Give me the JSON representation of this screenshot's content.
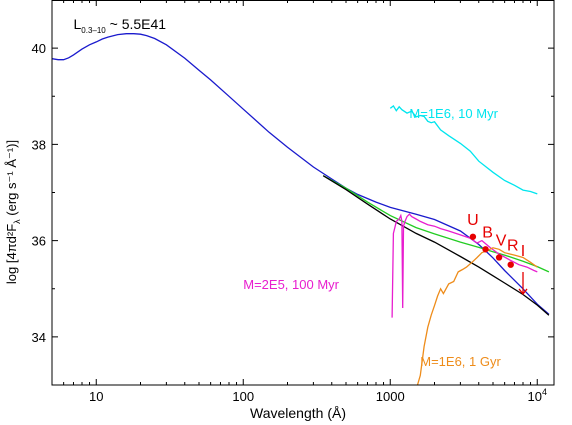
{
  "chart_data": {
    "type": "line",
    "title": "",
    "xlabel": "Wavelength (Å)",
    "ylabel": "log [4πd²F",
    "ylabel_sub": "λ",
    "ylabel_units": " (erg s⁻¹ Å⁻¹)]",
    "x_scale": "log",
    "xlim": [
      5,
      13000
    ],
    "ylim": [
      33,
      41
    ],
    "x_ticks": [
      {
        "value": 10,
        "label": "10",
        "sup": ""
      },
      {
        "value": 100,
        "label": "100",
        "sup": ""
      },
      {
        "value": 1000,
        "label": "1000",
        "sup": ""
      },
      {
        "value": 10000,
        "label": "10",
        "sup": "4"
      }
    ],
    "y_ticks": [
      {
        "value": 34,
        "label": "34"
      },
      {
        "value": 36,
        "label": "36"
      },
      {
        "value": 38,
        "label": "38"
      },
      {
        "value": 40,
        "label": "40"
      }
    ],
    "annotation": {
      "main": "L",
      "sub": "0.3–10",
      "rest": " ~ 5.5E41",
      "x": 7,
      "y": 40.4
    },
    "colors": {
      "model_blue": "#1a1acd",
      "model_green": "#22cc22",
      "model_black": "#000000",
      "young": "#00e5ee",
      "intermediate": "#e81ecf",
      "old": "#ee8c1a",
      "photometry": "#e60000"
    },
    "series": [
      {
        "key": "blue",
        "color_key": "model_blue",
        "x": [
          5,
          5.5,
          6,
          6.5,
          7,
          8,
          9,
          10,
          11,
          12,
          14,
          16,
          18,
          20,
          22,
          25,
          30,
          40,
          50,
          60,
          80,
          100,
          150,
          200,
          300,
          400,
          500,
          600,
          800,
          1000,
          1500,
          2000,
          3000,
          4000,
          5000,
          6000,
          8000,
          10000,
          12000
        ],
        "y": [
          39.78,
          39.76,
          39.76,
          39.8,
          39.86,
          39.98,
          40.07,
          40.13,
          40.19,
          40.23,
          40.28,
          40.3,
          40.3,
          40.29,
          40.26,
          40.2,
          40.07,
          39.79,
          39.54,
          39.34,
          39.0,
          38.73,
          38.25,
          37.94,
          37.53,
          37.28,
          37.09,
          36.96,
          36.8,
          36.69,
          36.55,
          36.44,
          36.2,
          35.92,
          35.64,
          35.38,
          35.0,
          34.68,
          34.47
        ]
      },
      {
        "key": "green",
        "color_key": "model_green",
        "x": [
          350,
          500,
          700,
          1000,
          1500,
          2000,
          3000,
          4000,
          5000,
          6000,
          8000,
          10000,
          12000
        ],
        "y": [
          37.35,
          37.09,
          36.8,
          36.52,
          36.27,
          36.14,
          35.97,
          35.86,
          35.77,
          35.7,
          35.57,
          35.46,
          35.35
        ]
      },
      {
        "key": "black",
        "color_key": "model_black",
        "x": [
          350,
          500,
          700,
          1000,
          1500,
          2000,
          3000,
          4000,
          5000,
          6000,
          8000,
          10000,
          12000
        ],
        "y": [
          37.35,
          37.06,
          36.76,
          36.45,
          36.15,
          35.97,
          35.67,
          35.45,
          35.27,
          35.12,
          34.88,
          34.66,
          34.45
        ]
      },
      {
        "key": "young",
        "color_key": "young",
        "label": "M=1E6, 10 Myr",
        "x": [
          1000,
          1050,
          1100,
          1150,
          1200,
          1300,
          1400,
          1500,
          1600,
          1700,
          1800,
          1900,
          2000,
          2200,
          2500,
          3000,
          3500,
          4000,
          5000,
          6000,
          7000,
          8000,
          9000,
          10000
        ],
        "y": [
          38.75,
          38.8,
          38.7,
          38.78,
          38.72,
          38.65,
          38.69,
          38.57,
          38.6,
          38.58,
          38.48,
          38.45,
          38.47,
          38.3,
          38.18,
          38.02,
          37.86,
          37.65,
          37.42,
          37.25,
          37.15,
          37.05,
          37.02,
          36.97
        ],
        "label_pos": {
          "x": 1350,
          "y": 38.55
        }
      },
      {
        "key": "intermediate",
        "color_key": "intermediate",
        "label": "M=2E5, 100 Myr",
        "x": [
          1030,
          1050,
          1060,
          1080,
          1100,
          1150,
          1180,
          1200,
          1215,
          1230,
          1260,
          1300,
          1350,
          1400,
          1500,
          1600,
          1800,
          2000,
          2200,
          2500,
          3000,
          3500,
          3900,
          4200,
          4800,
          5500,
          6500,
          7500,
          8500,
          9500,
          10000
        ],
        "y": [
          34.4,
          36.15,
          36.2,
          36.3,
          36.4,
          36.45,
          36.52,
          36.4,
          34.6,
          36.3,
          36.4,
          36.5,
          36.55,
          36.5,
          36.45,
          36.4,
          36.33,
          36.3,
          36.25,
          36.2,
          36.12,
          36.05,
          35.95,
          36.0,
          35.85,
          35.72,
          35.6,
          35.5,
          35.45,
          35.38,
          35.35
        ],
        "label_pos": {
          "x": 100,
          "y": 35.0
        }
      },
      {
        "key": "old",
        "color_key": "old",
        "label": "M=1E6, 1 Gyr",
        "x": [
          1500,
          1600,
          1700,
          1800,
          1900,
          2000,
          2100,
          2200,
          2300,
          2500,
          2700,
          2900,
          3100,
          3300,
          3600,
          3900,
          4200,
          4600,
          5000,
          5500,
          6000,
          7000,
          8000,
          9000,
          10000
        ],
        "y": [
          32.9,
          33.2,
          33.8,
          34.2,
          34.45,
          34.65,
          34.85,
          35.0,
          34.9,
          35.1,
          35.15,
          35.35,
          35.4,
          35.45,
          35.55,
          35.65,
          35.75,
          35.8,
          35.85,
          35.82,
          35.75,
          35.7,
          35.65,
          35.55,
          35.45
        ],
        "label_pos": {
          "x": 1600,
          "y": 33.4
        }
      }
    ],
    "photometry": [
      {
        "band": "U",
        "x": 3650,
        "y": 36.08,
        "type": "point",
        "label_dx": 0,
        "label_dy": -12
      },
      {
        "band": "B",
        "x": 4450,
        "y": 35.82,
        "type": "point",
        "label_dx": 2,
        "label_dy": -12
      },
      {
        "band": "V",
        "x": 5500,
        "y": 35.65,
        "type": "point",
        "label_dx": 2,
        "label_dy": -12
      },
      {
        "band": "R",
        "x": 6600,
        "y": 35.5,
        "type": "point",
        "label_dx": 2,
        "label_dy": -14
      },
      {
        "band": "I",
        "x": 8000,
        "y": 35.1,
        "type": "upper_limit",
        "label_dx": 0,
        "label_dy": -28
      }
    ]
  }
}
